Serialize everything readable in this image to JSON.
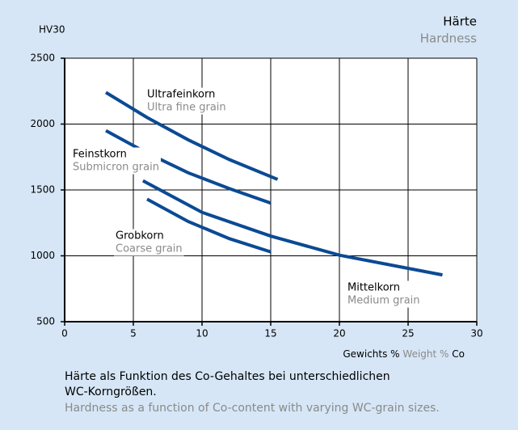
{
  "chart_data": {
    "type": "line",
    "title": "Härte",
    "subtitle": "Hardness",
    "y_label": "HV30",
    "x_label": {
      "de": "Gewichts %",
      "en": "Weight %",
      "unit": "Co"
    },
    "caption": {
      "de": [
        "Härte als Funktion des Co-Gehaltes bei unterschiedlichen",
        "WC-Korngrößen."
      ],
      "en": "Hardness as a function of Co-content with varying WC-grain sizes."
    },
    "xlim": [
      0,
      30
    ],
    "xticks": [
      0,
      5,
      10,
      15,
      20,
      25,
      30
    ],
    "ylim": [
      500,
      2500
    ],
    "yticks": [
      500,
      1000,
      1500,
      2000,
      2500
    ],
    "grid": true,
    "series": [
      {
        "name": "Ultrafeinkorn",
        "name_en": "Ultra fine grain",
        "color": "#0b4a94",
        "x": [
          3,
          6,
          9,
          12,
          15.5
        ],
        "values": [
          2240,
          2050,
          1880,
          1730,
          1580
        ]
      },
      {
        "name": "Feinstkorn",
        "name_en": "Submicron grain",
        "color": "#0b4a94",
        "x": [
          3,
          6,
          9,
          12,
          15
        ],
        "values": [
          1950,
          1780,
          1630,
          1510,
          1400
        ]
      },
      {
        "name": "Grobkorn",
        "name_en": "Coarse grain",
        "color": "#0b4a94",
        "x": [
          6,
          9,
          12,
          15
        ],
        "values": [
          1430,
          1260,
          1130,
          1030
        ]
      },
      {
        "name": "Mittelkorn",
        "name_en": "Medium grain",
        "color": "#0b4a94",
        "x": [
          5.7,
          10,
          15,
          20,
          25,
          27.5
        ],
        "values": [
          1570,
          1330,
          1150,
          1005,
          905,
          855
        ]
      }
    ]
  }
}
